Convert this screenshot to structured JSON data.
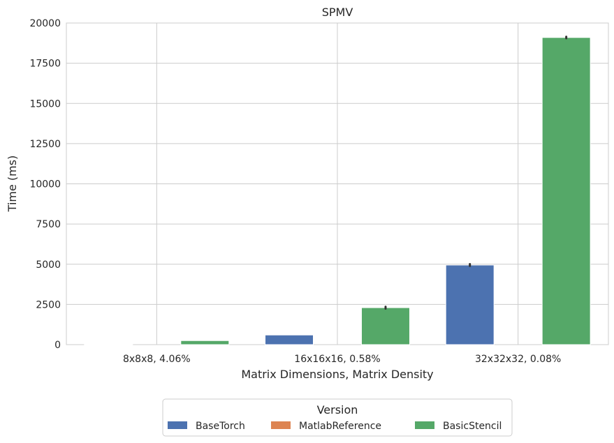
{
  "chart_data": {
    "type": "bar",
    "title": "SPMV",
    "xlabel": "Matrix Dimensions, Matrix Density",
    "ylabel": "Time (ms)",
    "categories": [
      "8x8x8, 4.06%",
      "16x16x16, 0.58%",
      "32x32x32, 0.08%"
    ],
    "ylim": [
      0,
      20000
    ],
    "yticks": [
      0,
      2500,
      5000,
      7500,
      10000,
      12500,
      15000,
      17500,
      20000
    ],
    "grid": true,
    "legend": {
      "title": "Version",
      "placement": "bottom-center"
    },
    "series": [
      {
        "name": "BaseTorch",
        "color": "#4c72b0",
        "values": [
          40,
          600,
          4950
        ],
        "error": [
          0,
          0,
          60
        ]
      },
      {
        "name": "MatlabReference",
        "color": "#dd8452",
        "values": [
          0,
          0,
          0
        ],
        "error": [
          0,
          0,
          0
        ]
      },
      {
        "name": "BasicStencil",
        "color": "#55a868",
        "values": [
          250,
          2300,
          19100
        ],
        "error": [
          0,
          60,
          50
        ]
      }
    ]
  }
}
